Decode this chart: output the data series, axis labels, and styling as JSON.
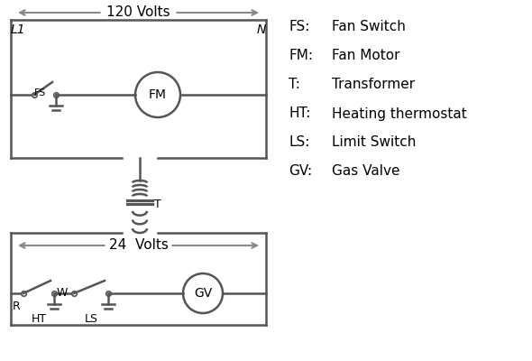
{
  "background_color": "#ffffff",
  "line_color": "#555555",
  "text_color": "#000000",
  "legend_items": [
    [
      "FS:",
      "Fan Switch"
    ],
    [
      "FM:",
      "Fan Motor"
    ],
    [
      "T:",
      "Transformer"
    ],
    [
      "HT:",
      "Heating thermostat"
    ],
    [
      "LS:",
      "Limit Switch"
    ],
    [
      "GV:",
      "Gas Valve"
    ]
  ],
  "L1_label": "L1",
  "N_label": "N",
  "volts_120": "120 Volts",
  "volts_24": "24  Volts",
  "T_label": "T",
  "R_label": "R",
  "W_label": "W",
  "HT_label": "HT",
  "LS_label": "LS",
  "FS_label": "FS",
  "FM_label": "FM",
  "GV_label": "GV"
}
